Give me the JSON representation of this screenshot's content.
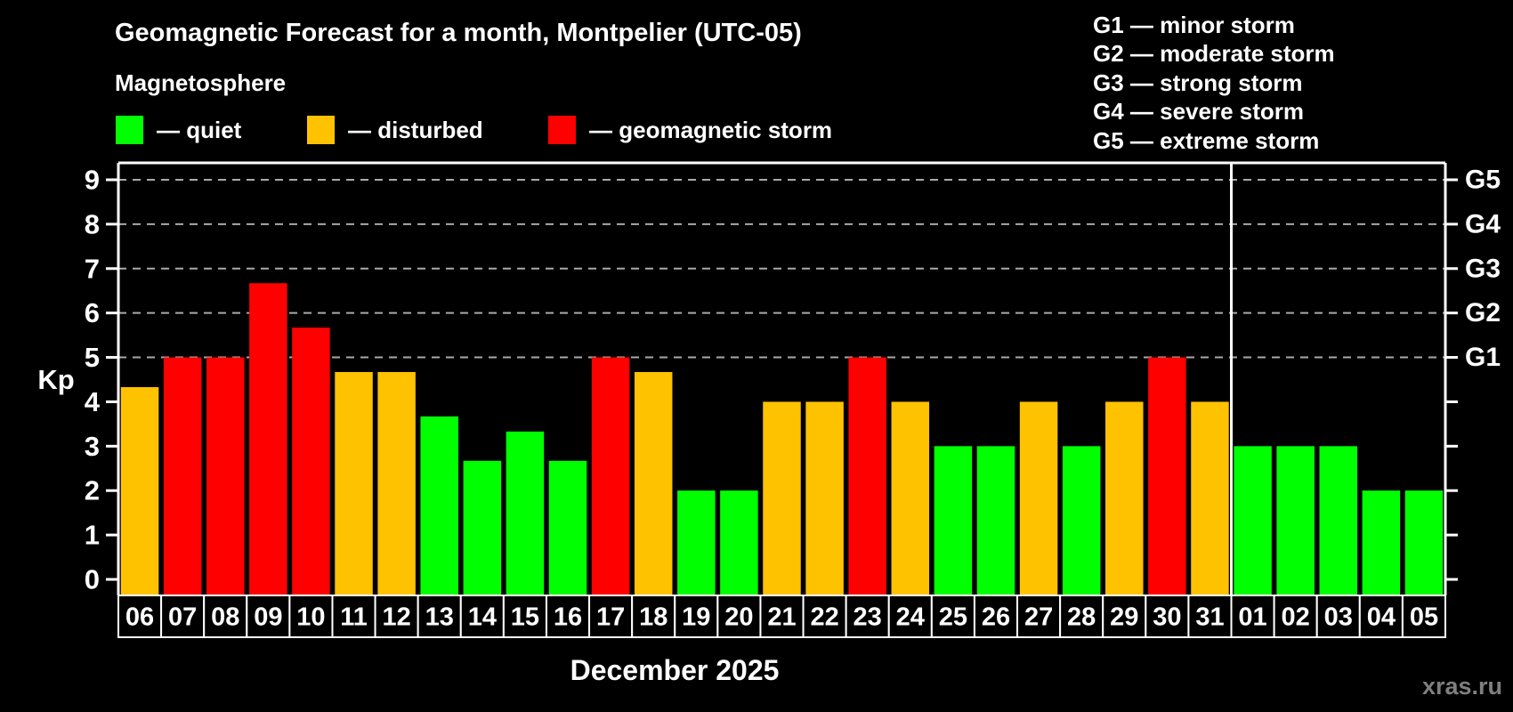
{
  "page": {
    "background": "#000000"
  },
  "header": {
    "title": "Geomagnetic Forecast for a month, Montpelier (UTC-05)",
    "subtitle": "Magnetosphere"
  },
  "legend": {
    "items": [
      {
        "key": "quiet",
        "label": "— quiet",
        "color": "#00ff00"
      },
      {
        "key": "disturbed",
        "label": "— disturbed",
        "color": "#ffc200"
      },
      {
        "key": "storm",
        "label": "— geomagnetic storm",
        "color": "#ff0000"
      }
    ]
  },
  "storm_scale_legend": {
    "items": [
      "G1 — minor storm",
      "G2 — moderate storm",
      "G3 — strong storm",
      "G4 — severe storm",
      "G5 — extreme storm"
    ]
  },
  "watermark": "xras.ru",
  "chart_data": {
    "type": "bar",
    "title": "Geomagnetic Forecast for a month, Montpelier (UTC-05)",
    "xlabel": "December 2025",
    "ylabel": "Kp",
    "ylim": [
      0,
      9
    ],
    "yticks": [
      0,
      1,
      2,
      3,
      4,
      5,
      6,
      7,
      8,
      9
    ],
    "grid": "dashed horizontal lines at Kp 5-9 only",
    "gridlines_at_kp": [
      5,
      6,
      7,
      8,
      9
    ],
    "right_axis_labels": [
      {
        "kp": 5,
        "label": "G1"
      },
      {
        "kp": 6,
        "label": "G2"
      },
      {
        "kp": 7,
        "label": "G3"
      },
      {
        "kp": 8,
        "label": "G4"
      },
      {
        "kp": 9,
        "label": "G5"
      }
    ],
    "month_boundary_index": 26,
    "colors": {
      "quiet": "#00ff00",
      "disturbed": "#ffc200",
      "storm": "#ff0000",
      "axis": "#ffffff",
      "grid": "#aaaaaa",
      "cell_background": "#000000"
    },
    "days": [
      {
        "day": "06",
        "kp": 4.33,
        "level": "disturbed"
      },
      {
        "day": "07",
        "kp": 5.0,
        "level": "storm"
      },
      {
        "day": "08",
        "kp": 5.0,
        "level": "storm"
      },
      {
        "day": "09",
        "kp": 6.67,
        "level": "storm"
      },
      {
        "day": "10",
        "kp": 5.67,
        "level": "storm"
      },
      {
        "day": "11",
        "kp": 4.67,
        "level": "disturbed"
      },
      {
        "day": "12",
        "kp": 4.67,
        "level": "disturbed"
      },
      {
        "day": "13",
        "kp": 3.67,
        "level": "quiet"
      },
      {
        "day": "14",
        "kp": 2.67,
        "level": "quiet"
      },
      {
        "day": "15",
        "kp": 3.33,
        "level": "quiet"
      },
      {
        "day": "16",
        "kp": 2.67,
        "level": "quiet"
      },
      {
        "day": "17",
        "kp": 5.0,
        "level": "storm"
      },
      {
        "day": "18",
        "kp": 4.67,
        "level": "disturbed"
      },
      {
        "day": "19",
        "kp": 2.0,
        "level": "quiet"
      },
      {
        "day": "20",
        "kp": 2.0,
        "level": "quiet"
      },
      {
        "day": "21",
        "kp": 4.0,
        "level": "disturbed"
      },
      {
        "day": "22",
        "kp": 4.0,
        "level": "disturbed"
      },
      {
        "day": "23",
        "kp": 5.0,
        "level": "storm"
      },
      {
        "day": "24",
        "kp": 4.0,
        "level": "disturbed"
      },
      {
        "day": "25",
        "kp": 3.0,
        "level": "quiet"
      },
      {
        "day": "26",
        "kp": 3.0,
        "level": "quiet"
      },
      {
        "day": "27",
        "kp": 4.0,
        "level": "disturbed"
      },
      {
        "day": "28",
        "kp": 3.0,
        "level": "quiet"
      },
      {
        "day": "29",
        "kp": 4.0,
        "level": "disturbed"
      },
      {
        "day": "30",
        "kp": 5.0,
        "level": "storm"
      },
      {
        "day": "31",
        "kp": 4.0,
        "level": "disturbed"
      },
      {
        "day": "01",
        "kp": 3.0,
        "level": "quiet"
      },
      {
        "day": "02",
        "kp": 3.0,
        "level": "quiet"
      },
      {
        "day": "03",
        "kp": 3.0,
        "level": "quiet"
      },
      {
        "day": "04",
        "kp": 2.0,
        "level": "quiet"
      },
      {
        "day": "05",
        "kp": 2.0,
        "level": "quiet"
      }
    ]
  }
}
